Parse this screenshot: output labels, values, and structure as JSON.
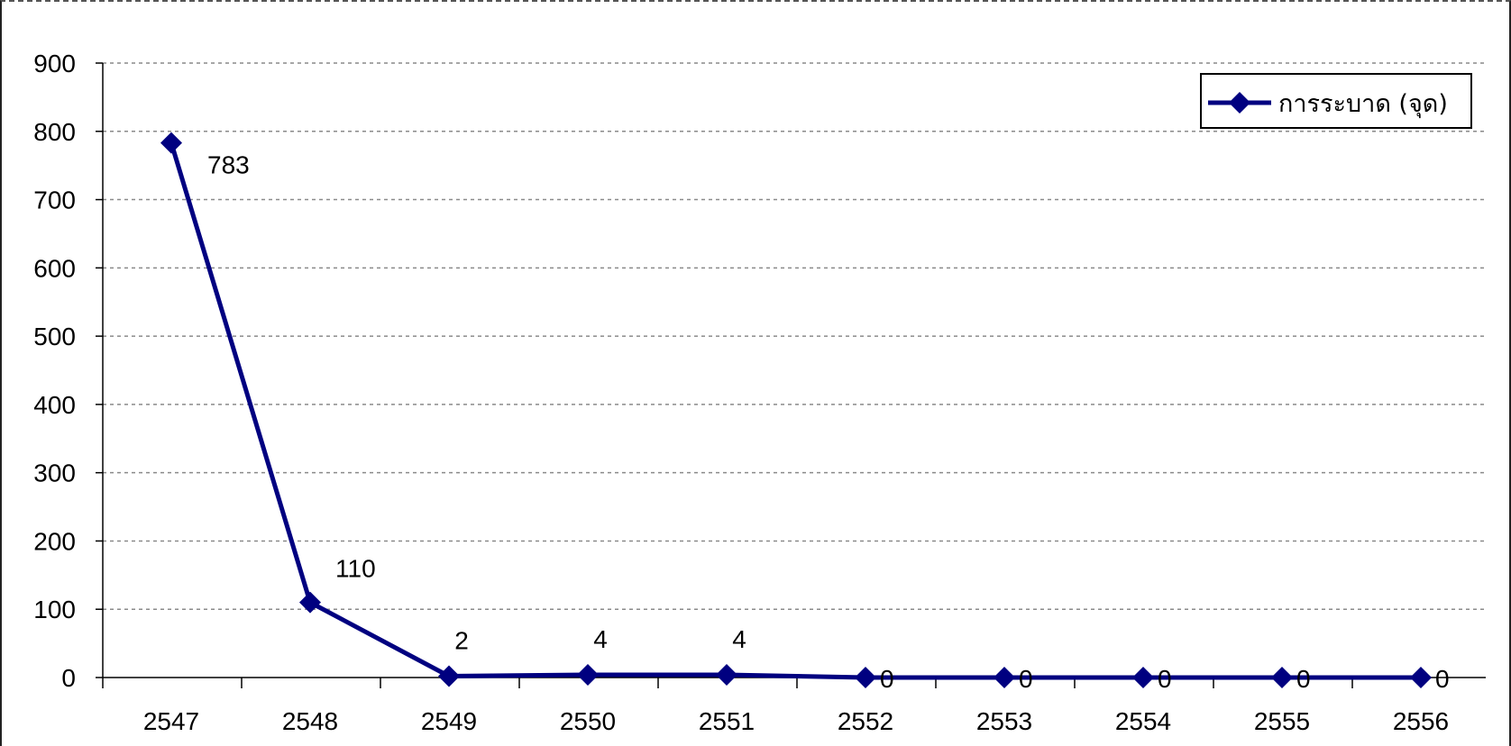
{
  "chart_data": {
    "type": "line",
    "title": "",
    "xlabel": "",
    "ylabel": "",
    "categories": [
      "2547",
      "2548",
      "2549",
      "2550",
      "2551",
      "2552",
      "2553",
      "2554",
      "2555",
      "2556"
    ],
    "series": [
      {
        "name": "การระบาด (จุด)",
        "values": [
          783,
          110,
          2,
          4,
          4,
          0,
          0,
          0,
          0,
          0
        ],
        "color": "#000080",
        "marker": "diamond",
        "data_labels": [
          "783",
          "110",
          "2",
          "4",
          "4",
          "0",
          "0",
          "0",
          "0",
          "0"
        ]
      }
    ],
    "ylim": [
      0,
      900
    ],
    "yticks": [
      0,
      100,
      200,
      300,
      400,
      500,
      600,
      700,
      800,
      900
    ],
    "grid": "horizontal-dashed",
    "legend": "top-right"
  }
}
